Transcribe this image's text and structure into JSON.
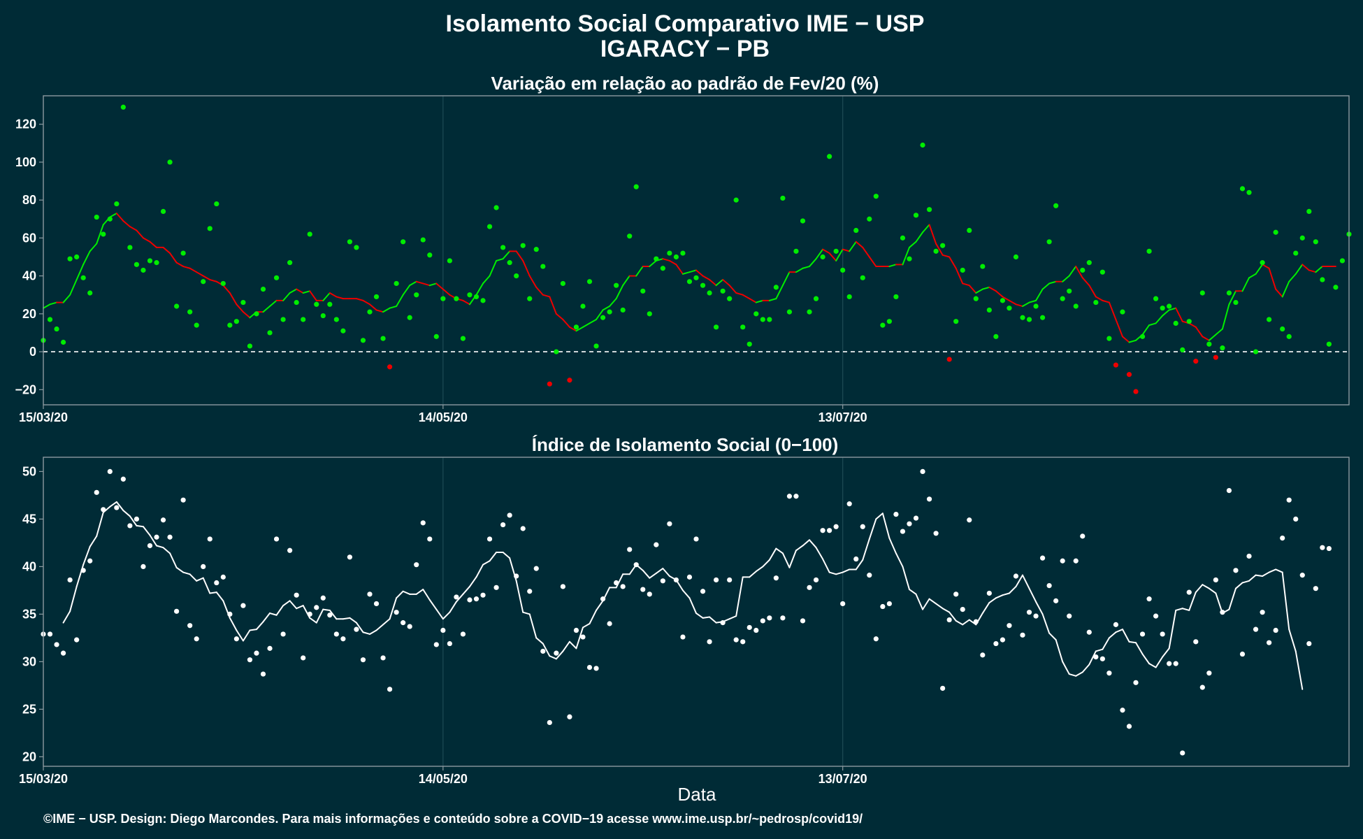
{
  "header": {
    "title": "Isolamento Social Comparativo IME − USP",
    "subtitle": "IGARACY − PB"
  },
  "footer": {
    "credit": "©IME − USP. Design: Diego Marcondes. Para mais informações e conteúdo sobre a COVID−19 acesse www.ime.usp.br/~pedrosp/covid19/"
  },
  "colors": {
    "background": "#002b36",
    "positive": "#00ee00",
    "negative": "#ee0000",
    "index": "#ffffff",
    "frame": "#8c9aa0",
    "grid": "#1e4b55"
  },
  "chart_data": [
    {
      "type": "scatter",
      "title": "Variação em relação ao padrão de Fev/20 (%)",
      "xlabel": "",
      "ylabel": "",
      "x_start": "15/03/20",
      "x_tick_labels": [
        "15/03/20",
        "14/05/20",
        "13/07/20"
      ],
      "x_tick_positions": [
        0,
        60,
        120
      ],
      "y_ticks": [
        -20,
        0,
        20,
        40,
        60,
        80,
        100,
        120
      ],
      "ylim": [
        -28,
        135
      ],
      "xlim": [
        0,
        196
      ],
      "zero_line": true,
      "points": [
        6,
        17,
        12,
        5,
        49,
        50,
        39,
        31,
        71,
        62,
        70,
        78,
        129,
        55,
        46,
        43,
        48,
        47,
        74,
        100,
        24,
        52,
        21,
        14,
        37,
        65,
        78,
        36,
        14,
        16,
        26,
        3,
        20,
        33,
        10,
        39,
        17,
        47,
        26,
        17,
        62,
        25,
        19,
        25,
        17,
        11,
        58,
        55,
        6,
        21,
        29,
        7,
        -8,
        36,
        58,
        18,
        30,
        59,
        51,
        8,
        28,
        48,
        28,
        7,
        30,
        29,
        27,
        66,
        76,
        55,
        47,
        40,
        56,
        28,
        54,
        45,
        -17,
        0,
        36,
        -15,
        13,
        24,
        37,
        3,
        18,
        21,
        35,
        22,
        61,
        87,
        32,
        20,
        49,
        44,
        52,
        50,
        52,
        37,
        39,
        35,
        31,
        13,
        32,
        28,
        80,
        13,
        4,
        20,
        17,
        17,
        34,
        81,
        21,
        53,
        69,
        21,
        28,
        50,
        103,
        53,
        43,
        29,
        64,
        39,
        70,
        82,
        14,
        16,
        29,
        60,
        49,
        72,
        109,
        75,
        53,
        56,
        -4,
        16,
        43,
        64,
        28,
        45,
        22,
        8,
        27,
        23,
        50,
        18,
        17,
        24,
        18,
        58,
        77,
        28,
        32,
        24,
        43,
        47,
        26,
        42,
        7,
        -7,
        21,
        -12,
        -21,
        8,
        53,
        28,
        23,
        24,
        15,
        1,
        16,
        -5,
        31,
        4,
        -3,
        2,
        31,
        26,
        86,
        84,
        0,
        47,
        17,
        63,
        12,
        8,
        52,
        60,
        74,
        58,
        38,
        4,
        34,
        48,
        62
      ],
      "series": [
        {
          "name": "",
          "start_index": 0,
          "values": [
            23,
            25,
            26,
            26,
            30,
            38,
            46,
            53,
            57,
            67,
            71,
            73,
            69,
            66,
            64,
            60,
            58,
            55,
            55,
            52,
            47,
            45,
            44,
            42,
            40,
            38,
            37,
            35,
            31,
            25,
            21,
            18,
            21,
            21,
            24,
            27,
            27,
            31,
            33,
            31,
            32,
            27,
            27,
            31,
            29,
            28,
            28,
            28,
            27,
            25,
            22,
            21,
            23,
            24,
            30,
            35,
            37,
            36,
            35,
            36,
            33,
            30,
            28,
            27,
            25,
            30,
            36,
            40,
            48,
            49,
            53,
            53,
            48,
            40,
            34,
            30,
            29,
            20,
            17,
            13,
            11,
            13,
            15,
            17,
            22,
            24,
            28,
            35,
            40,
            40,
            45,
            45,
            48,
            49,
            48,
            46,
            41,
            42,
            43,
            40,
            38,
            35,
            38,
            35,
            31,
            30,
            28,
            26,
            27,
            27,
            28,
            35,
            42,
            42,
            44,
            45,
            49,
            54,
            52,
            48,
            54,
            53,
            58,
            55,
            50,
            45,
            45,
            45,
            46,
            46,
            55,
            58,
            63,
            67,
            57,
            51,
            50,
            44,
            36,
            35,
            31,
            33,
            34,
            32,
            29,
            27,
            25,
            24,
            26,
            27,
            33,
            36,
            37,
            37,
            40,
            45,
            39,
            35,
            29,
            27,
            26,
            17,
            8,
            5,
            6,
            9,
            14,
            15,
            19,
            22,
            23,
            16,
            15,
            13,
            8,
            6,
            9,
            12,
            25,
            32,
            32,
            39,
            41,
            46,
            44,
            33,
            29,
            37,
            41,
            46,
            43,
            42,
            45,
            45,
            45
          ]
        }
      ]
    },
    {
      "type": "scatter",
      "title": "Índice de Isolamento Social (0−100)",
      "xlabel": "Data",
      "ylabel": "",
      "x_start": "15/03/20",
      "x_tick_labels": [
        "15/03/20",
        "14/05/20",
        "13/07/20"
      ],
      "x_tick_positions": [
        0,
        60,
        120
      ],
      "y_ticks": [
        20,
        25,
        30,
        35,
        40,
        45,
        50
      ],
      "ylim": [
        19,
        51.5
      ],
      "xlim": [
        0,
        196
      ],
      "points": [
        32.9,
        32.9,
        31.8,
        30.9,
        38.6,
        32.3,
        39.6,
        40.6,
        47.8,
        46,
        50,
        46.2,
        49.2,
        44.3,
        45,
        40,
        42.2,
        43.1,
        44.9,
        43.1,
        35.3,
        47,
        33.8,
        32.4,
        40,
        42.9,
        38.3,
        38.9,
        35,
        32.4,
        35.9,
        30.2,
        30.9,
        28.7,
        31.4,
        42.9,
        32.9,
        41.7,
        37,
        30.4,
        35,
        35.7,
        36.7,
        34.9,
        32.9,
        32.4,
        41,
        33.4,
        30.2,
        37.1,
        36.1,
        30.4,
        27.1,
        35.2,
        34.1,
        33.7,
        40.2,
        44.6,
        42.9,
        31.8,
        33.3,
        31.9,
        36.8,
        32.9,
        36.5,
        36.6,
        37,
        42.9,
        37.8,
        44.4,
        45.4,
        39,
        44,
        37.4,
        39.8,
        31.1,
        23.6,
        30.9,
        37.9,
        24.2,
        33.3,
        32.6,
        29.4,
        29.3,
        36.6,
        34,
        38.3,
        37.9,
        41.8,
        40.2,
        37.6,
        37.1,
        42.3,
        38.5,
        44.5,
        38.6,
        32.6,
        38.9,
        42.9,
        37.4,
        32.1,
        38.6,
        34.1,
        38.6,
        32.3,
        32.1,
        33.6,
        33.3,
        34.3,
        34.6,
        38.8,
        34.6,
        47.4,
        47.4,
        34.3,
        37.8,
        38.6,
        43.8,
        43.8,
        44.2,
        36.1,
        46.6,
        40.8,
        44.2,
        39.1,
        32.4,
        35.8,
        36.1,
        45.5,
        43.7,
        44.5,
        45.1,
        50,
        47.1,
        43.5,
        27.2,
        34.4,
        37.1,
        35.5,
        44.9,
        34.2,
        30.7,
        37.2,
        31.9,
        32.3,
        33.8,
        39,
        32.8,
        35.2,
        34.8,
        40.9,
        38,
        36.4,
        40.6,
        34.8,
        40.6,
        43.2,
        33.1,
        30.5,
        30.3,
        28.8,
        33.9,
        24.9,
        23.2,
        27.8,
        32.9,
        36.6,
        34.8,
        32.9,
        29.8,
        29.8,
        20.4,
        37.3,
        32.1,
        27.3,
        28.8,
        38.6,
        35.2,
        48,
        39.6,
        30.8,
        41.1,
        33.4,
        35.2,
        32,
        33.3,
        43,
        47,
        45,
        39.1,
        31.9,
        37.7,
        42,
        41.9
      ],
      "series": [
        {
          "name": "",
          "start_index": 3,
          "values": [
            34.1,
            35.3,
            37.9,
            40.2,
            42.1,
            43.2,
            45.7,
            46.3,
            46.8,
            45.9,
            45.3,
            44.3,
            44.2,
            43.3,
            42.2,
            42,
            41.4,
            39.9,
            39.4,
            39.2,
            38.5,
            38.8,
            37.2,
            37.3,
            36.4,
            34.6,
            33.3,
            32.2,
            33.3,
            33.4,
            34.2,
            35.1,
            34.9,
            35.9,
            36.4,
            35.6,
            35.9,
            34.6,
            34.1,
            35.5,
            35.4,
            34.5,
            34.5,
            34.6,
            34.1,
            33.1,
            32.9,
            33.3,
            33.9,
            34.5,
            36.7,
            37.4,
            37.1,
            37.1,
            37.6,
            36.5,
            35.5,
            34.5,
            35.2,
            36.3,
            37.1,
            37.9,
            38.9,
            40.2,
            40.6,
            41.5,
            41.5,
            40.9,
            38.5,
            35.2,
            35,
            32.5,
            31.9,
            30.6,
            30.3,
            31.1,
            32.1,
            31.4,
            33.6,
            34,
            35.4,
            36.4,
            37.8,
            37.8,
            39.2,
            39.2,
            40.2,
            39.6,
            38.8,
            39.3,
            39.8,
            39,
            38.6,
            37.5,
            36.7,
            35.1,
            34.6,
            34.7,
            34.1,
            34.2,
            34.5,
            34.8,
            38.9,
            38.9,
            39.5,
            40,
            40.7,
            41.9,
            41.4,
            39.9,
            41.7,
            42.2,
            42.8,
            42,
            40.8,
            39.4,
            39.2,
            39.4,
            39.7,
            39.7,
            40.7,
            42.9,
            45,
            45.6,
            43,
            41.4,
            40,
            37.6,
            37.1,
            35.5,
            36.6,
            36.1,
            35.6,
            35.2,
            34.3,
            33.9,
            34.4,
            33.9,
            35.1,
            36.2,
            36.7,
            37,
            37.2,
            37.9,
            39.1,
            37.7,
            36.3,
            35,
            33,
            32.3,
            30,
            28.7,
            28.5,
            28.9,
            29.7,
            31.1,
            31.3,
            32.5,
            33.1,
            33.4,
            32.1,
            32,
            30.8,
            29.8,
            29.4,
            30.5,
            31.4,
            35.4,
            35.6,
            35.4,
            37.3,
            38.1,
            37.7,
            37.2,
            35.1,
            35.5,
            37.7,
            38.3,
            38.5,
            39.1,
            39,
            39.4,
            39.7,
            39.4,
            33.4,
            31.1,
            27.1
          ]
        }
      ]
    }
  ]
}
